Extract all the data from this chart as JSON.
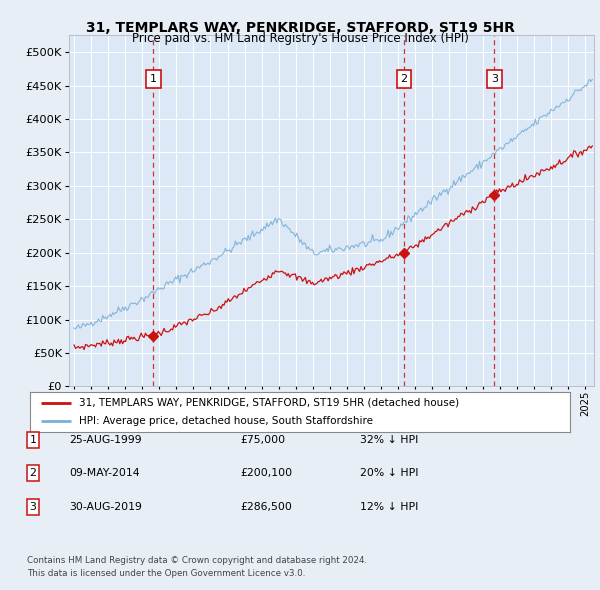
{
  "title": "31, TEMPLARS WAY, PENKRIDGE, STAFFORD, ST19 5HR",
  "subtitle": "Price paid vs. HM Land Registry's House Price Index (HPI)",
  "background_color": "#e8eef5",
  "plot_bg_color": "#dce8f5",
  "ylim": [
    0,
    525000
  ],
  "yticks": [
    0,
    50000,
    100000,
    150000,
    200000,
    250000,
    300000,
    350000,
    400000,
    450000,
    500000
  ],
  "xlim_start": 1994.7,
  "xlim_end": 2025.5,
  "sale_dates": [
    1999.646,
    2014.352,
    2019.658
  ],
  "sale_prices": [
    75000,
    200100,
    286500
  ],
  "sale_labels": [
    "1",
    "2",
    "3"
  ],
  "legend_entry1": "31, TEMPLARS WAY, PENKRIDGE, STAFFORD, ST19 5HR (detached house)",
  "legend_entry2": "HPI: Average price, detached house, South Staffordshire",
  "table_rows": [
    {
      "num": "1",
      "date": "25-AUG-1999",
      "price": "£75,000",
      "hpi": "32% ↓ HPI"
    },
    {
      "num": "2",
      "date": "09-MAY-2014",
      "price": "£200,100",
      "hpi": "20% ↓ HPI"
    },
    {
      "num": "3",
      "date": "30-AUG-2019",
      "price": "£286,500",
      "hpi": "12% ↓ HPI"
    }
  ],
  "footnote1": "Contains HM Land Registry data © Crown copyright and database right 2024.",
  "footnote2": "This data is licensed under the Open Government Licence v3.0.",
  "hpi_color": "#7ab0d8",
  "price_color": "#cc1111",
  "vline_color": "#cc1111",
  "grid_color": "#ffffff"
}
